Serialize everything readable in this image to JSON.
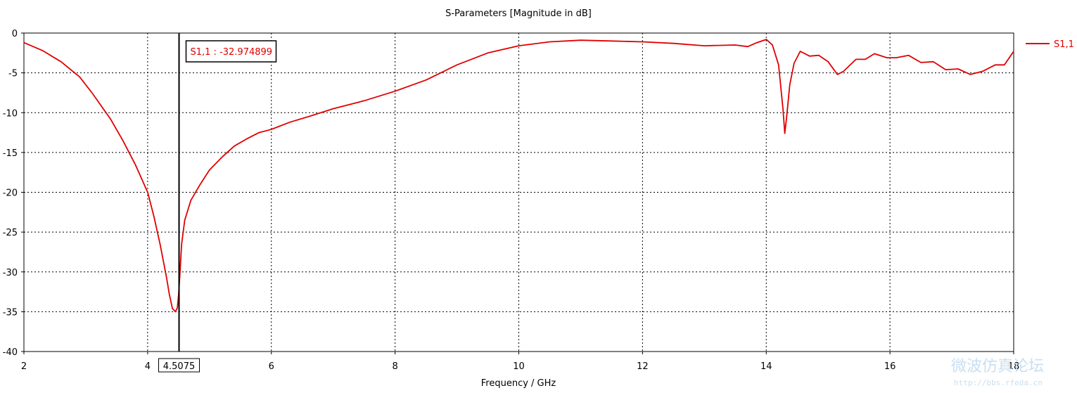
{
  "chart_data": {
    "type": "line",
    "title": "S-Parameters [Magnitude in dB]",
    "xlabel": "Frequency / GHz",
    "ylabel": "",
    "xlim": [
      2,
      18
    ],
    "ylim": [
      -40,
      0
    ],
    "x_ticks": [
      2,
      4,
      6,
      8,
      10,
      12,
      14,
      16,
      18
    ],
    "y_ticks": [
      0,
      -5,
      -10,
      -15,
      -20,
      -25,
      -30,
      -35,
      -40
    ],
    "grid": true,
    "legend_position": "top-right",
    "series": [
      {
        "name": "S1,1",
        "color": "#e00000",
        "x": [
          2.0,
          2.3,
          2.6,
          2.9,
          3.1,
          3.4,
          3.6,
          3.8,
          4.0,
          4.1,
          4.2,
          4.3,
          4.35,
          4.4,
          4.45,
          4.48,
          4.5,
          4.52,
          4.55,
          4.6,
          4.7,
          4.85,
          5.0,
          5.2,
          5.4,
          5.6,
          5.8,
          6.0,
          6.3,
          6.6,
          7.0,
          7.5,
          8.0,
          8.5,
          9.0,
          9.5,
          10.0,
          10.5,
          11.0,
          11.5,
          12.0,
          12.5,
          13.0,
          13.5,
          13.7,
          13.85,
          14.0,
          14.1,
          14.2,
          14.27,
          14.3,
          14.33,
          14.38,
          14.45,
          14.55,
          14.7,
          14.85,
          15.0,
          15.15,
          15.25,
          15.45,
          15.6,
          15.75,
          15.95,
          16.1,
          16.3,
          16.5,
          16.7,
          16.9,
          17.1,
          17.3,
          17.5,
          17.7,
          17.85,
          18.0
        ],
        "values": [
          -1.2,
          -2.2,
          -3.6,
          -5.5,
          -7.5,
          -10.8,
          -13.5,
          -16.5,
          -20.0,
          -23.0,
          -26.5,
          -30.5,
          -32.8,
          -34.6,
          -35.0,
          -34.5,
          -32.97,
          -30.5,
          -26.5,
          -23.5,
          -21.0,
          -19.0,
          -17.2,
          -15.6,
          -14.2,
          -13.3,
          -12.5,
          -12.1,
          -11.2,
          -10.5,
          -9.5,
          -8.5,
          -7.3,
          -5.9,
          -4.0,
          -2.5,
          -1.6,
          -1.1,
          -0.9,
          -1.0,
          -1.1,
          -1.3,
          -1.6,
          -1.5,
          -1.7,
          -1.2,
          -0.8,
          -1.5,
          -4.0,
          -9.5,
          -12.6,
          -10.5,
          -6.5,
          -3.8,
          -2.3,
          -2.9,
          -2.8,
          -3.6,
          -5.2,
          -4.8,
          -3.3,
          -3.3,
          -2.6,
          -3.1,
          -3.1,
          -2.8,
          -3.7,
          -3.6,
          -4.6,
          -4.5,
          -5.2,
          -4.8,
          -4.0,
          -4.0,
          -2.3
        ]
      }
    ],
    "marker": {
      "x_label": "4.5075",
      "x": 4.5075,
      "readout": "S1,1 : -32.974899"
    }
  },
  "watermark": {
    "text": "微波仿真论坛",
    "url": "http://bbs.rfeda.cn"
  }
}
